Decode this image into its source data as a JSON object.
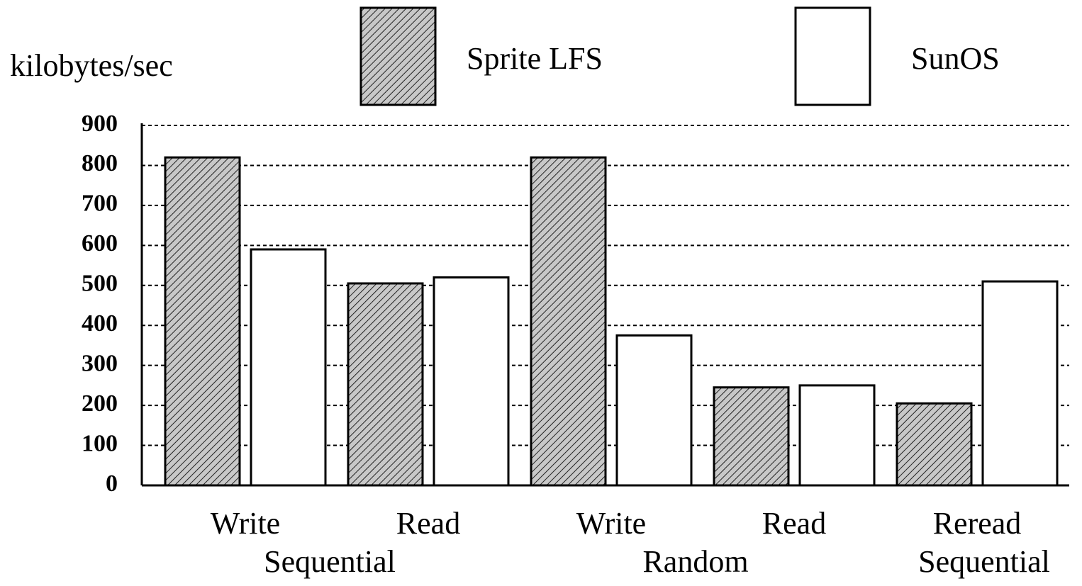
{
  "chart_data": {
    "type": "bar",
    "ylabel": "kilobytes/sec",
    "categories": [
      "Write",
      "Read",
      "Write",
      "Read",
      "Reread"
    ],
    "category_groups": [
      "Sequential",
      "Sequential",
      "Random",
      "Random",
      "Sequential"
    ],
    "series": [
      {
        "name": "Sprite LFS",
        "color": "#c8c8c8",
        "hatch": true,
        "values": [
          820,
          505,
          820,
          245,
          205
        ]
      },
      {
        "name": "SunOS",
        "color": "#ffffff",
        "hatch": false,
        "values": [
          590,
          520,
          375,
          250,
          510
        ]
      }
    ],
    "ylim": [
      0,
      900
    ],
    "yticks": [
      0,
      100,
      200,
      300,
      400,
      500,
      600,
      700,
      800,
      900
    ],
    "grid": true
  }
}
